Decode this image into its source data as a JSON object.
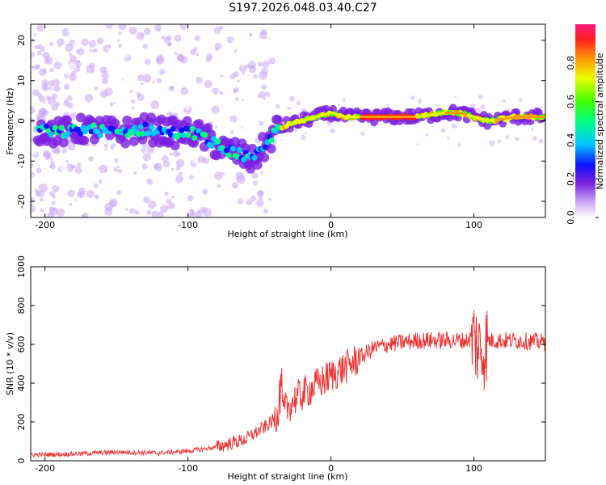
{
  "title": "S197.2026.048.03.40.C27",
  "chart_data": [
    {
      "type": "heatmap",
      "xlabel": "Height of straight line (km)",
      "ylabel": "Frequency (Hz)",
      "xlim": [
        -210,
        150
      ],
      "ylim": [
        -24,
        24
      ],
      "xticks": [
        -200,
        -100,
        0,
        100
      ],
      "yticks": [
        -20,
        -10,
        0,
        10,
        20
      ],
      "colorbar": {
        "label": "Normalized spectral amplitude",
        "range": [
          0.0,
          1.0
        ],
        "ticks": [
          "0.0",
          "0.2",
          "0.4",
          "0.6",
          "0.8"
        ]
      },
      "ridge": {
        "x": [
          -205,
          -190,
          -170,
          -150,
          -130,
          -110,
          -95,
          -85,
          -75,
          -65,
          -55,
          -45,
          -38,
          -30,
          -20,
          -10,
          0,
          10,
          20,
          40,
          60,
          80,
          90,
          100,
          110,
          130,
          150
        ],
        "y": [
          -2,
          -3,
          -2,
          -3,
          -2,
          -3,
          -3,
          -5,
          -7,
          -8,
          -10,
          -6,
          -2,
          -1,
          0,
          1,
          2,
          1,
          1,
          1,
          1,
          2,
          2,
          1,
          0,
          1,
          1
        ]
      }
    },
    {
      "type": "line",
      "xlabel": "Height of straight line (km)",
      "ylabel": "SNR (10 * v/v)",
      "xlim": [
        -210,
        150
      ],
      "ylim": [
        0,
        1000
      ],
      "xticks": [
        -200,
        -100,
        0,
        100
      ],
      "yticks": [
        0,
        200,
        400,
        600,
        800,
        1000
      ],
      "color": "#ee3333",
      "trend": {
        "x": [
          -210,
          -180,
          -150,
          -120,
          -100,
          -80,
          -60,
          -45,
          -35,
          -25,
          -10,
          0,
          10,
          20,
          30,
          40,
          60,
          80,
          95,
          100,
          103,
          106,
          110,
          130,
          150
        ],
        "y": [
          30,
          35,
          45,
          40,
          50,
          70,
          110,
          180,
          240,
          320,
          390,
          440,
          480,
          530,
          580,
          600,
          620,
          620,
          620,
          640,
          580,
          560,
          620,
          620,
          610
        ]
      }
    }
  ]
}
